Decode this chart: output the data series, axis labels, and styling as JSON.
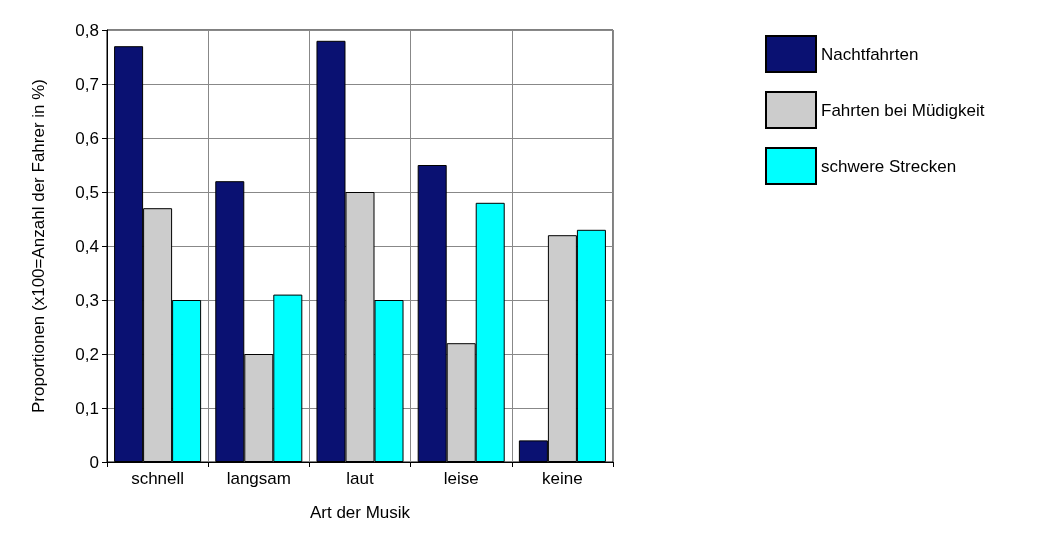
{
  "chart_data": {
    "type": "bar",
    "xlabel": "Art der Musik",
    "ylabel": "Proportionen (x100=Anzahl der Fahrer in %)",
    "categories": [
      "schnell",
      "langsam",
      "laut",
      "leise",
      "keine"
    ],
    "series": [
      {
        "name": "Nachtfahrten",
        "color": "#0a1172",
        "values": [
          0.77,
          0.52,
          0.78,
          0.55,
          0.04
        ]
      },
      {
        "name": "Fahrten bei Müdigkeit",
        "color": "#cccccc",
        "values": [
          0.47,
          0.2,
          0.5,
          0.22,
          0.42
        ]
      },
      {
        "name": "schwere Strecken",
        "color": "#00ffff",
        "values": [
          0.3,
          0.31,
          0.3,
          0.48,
          0.43
        ]
      }
    ],
    "ylim": [
      0,
      0.8
    ],
    "yticks": [
      0,
      {
        "value": 0.1,
        "label": "0,1"
      },
      {
        "value": 0.2,
        "label": "0,2"
      },
      {
        "value": 0.3,
        "label": "0,3"
      },
      {
        "value": 0.4,
        "label": "0,4"
      },
      {
        "value": 0.5,
        "label": "0,5"
      },
      {
        "value": 0.6,
        "label": "0,6"
      },
      {
        "value": 0.7,
        "label": "0,7"
      },
      {
        "value": 0.8,
        "label": "0,8"
      }
    ],
    "grid": true,
    "legend": "right"
  }
}
